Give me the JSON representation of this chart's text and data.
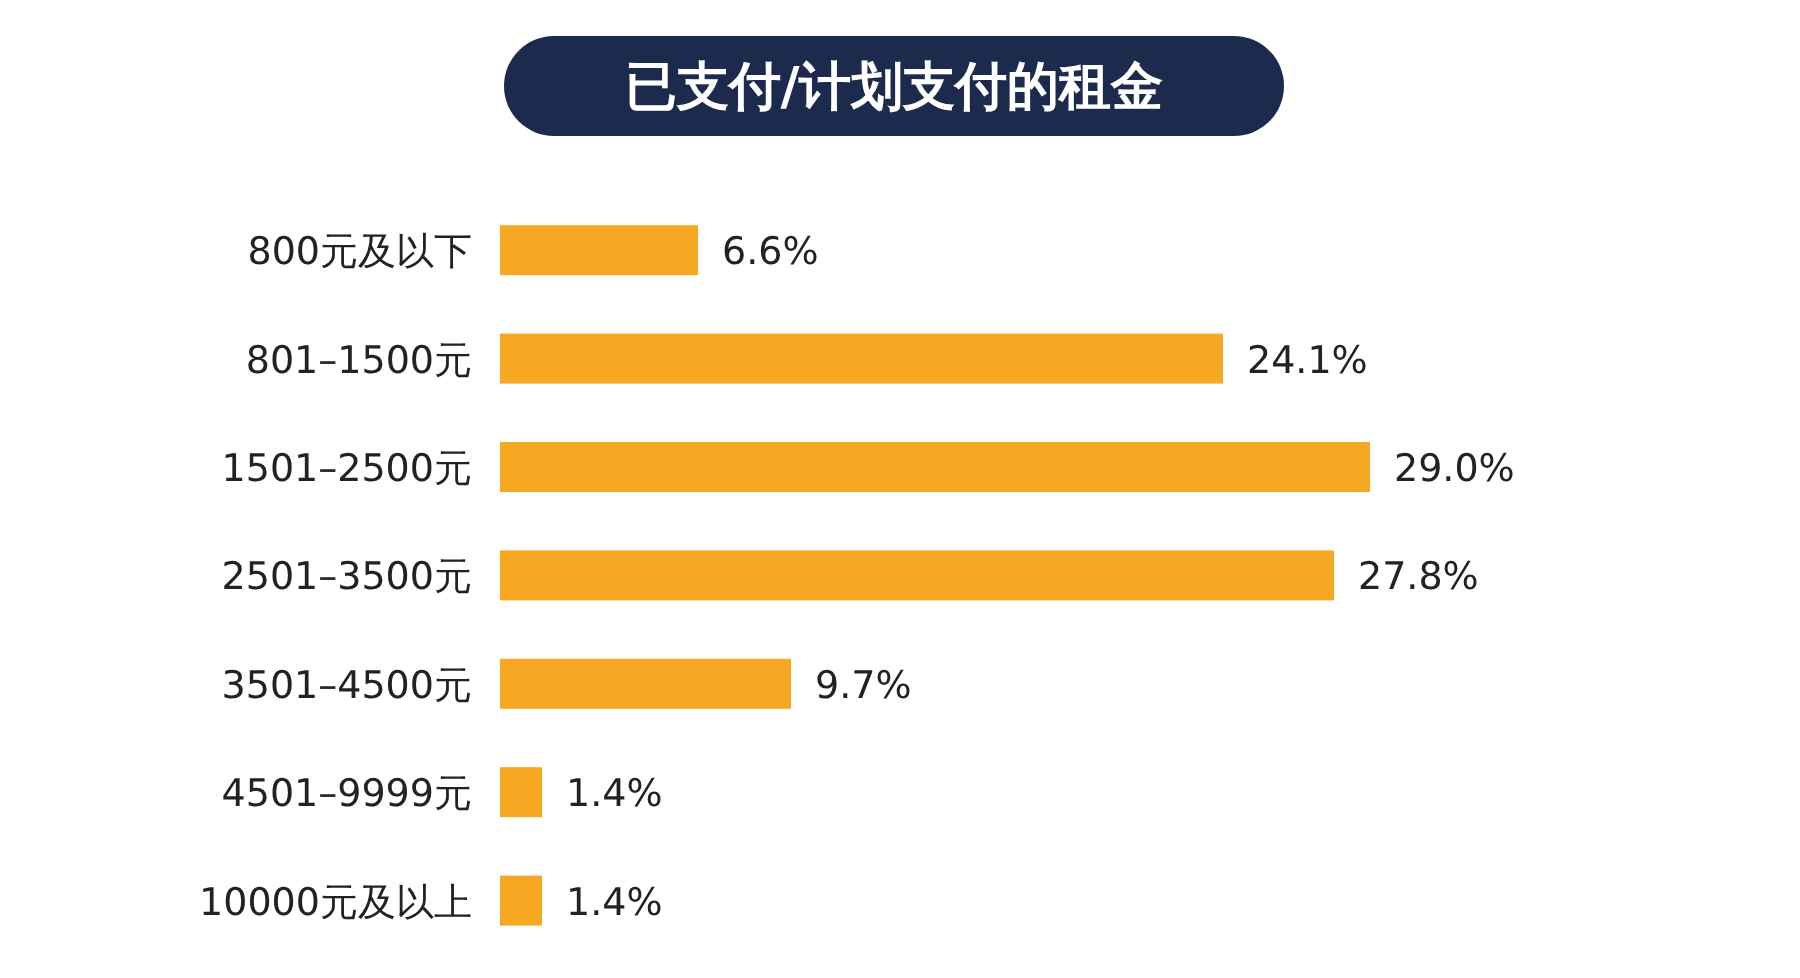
{
  "chart_data": {
    "type": "bar",
    "orientation": "horizontal",
    "title": "已支付/计划支付的租金",
    "categories": [
      "800元及以下",
      "801–1500元",
      "1501–2500元",
      "2501–3500元",
      "3501–4500元",
      "4501–9999元",
      "10000元及以上"
    ],
    "values": [
      6.6,
      24.1,
      29.0,
      27.8,
      9.7,
      1.4,
      1.4
    ],
    "value_labels": [
      "6.6%",
      "24.1%",
      "29.0%",
      "27.8%",
      "9.7%",
      "1.4%",
      "1.4%"
    ],
    "data_labels": true,
    "color": "#f7a823"
  }
}
